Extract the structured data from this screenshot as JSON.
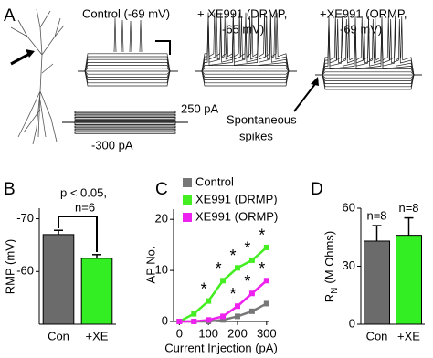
{
  "panel_a": {
    "label": "A",
    "trace_titles": [
      "Control (-69 mV)",
      "+ XE991 (DRMP,",
      "-65 mV)",
      "+XE991 (ORMP,",
      "-69 mV)"
    ],
    "step_max": "250 pA",
    "step_min": "-300 pA",
    "annotation": [
      "Spontaneous",
      "spikes"
    ]
  },
  "chart_data": [
    {
      "type": "bar",
      "panel": "B",
      "ylabel": "RMP (mV)",
      "categories": [
        "Con",
        "+XE"
      ],
      "values": [
        -67,
        -62.5
      ],
      "errors": [
        0.8,
        0.7
      ],
      "colors": [
        "#6b6b6b",
        "#33ee22"
      ],
      "ylim": [
        -50,
        -72
      ],
      "yticks": [
        -70,
        -60
      ],
      "annotation": [
        "p < 0.05,",
        "n=6"
      ]
    },
    {
      "type": "line",
      "panel": "C",
      "xlabel": "Current Injection (pA)",
      "ylabel": "AP No.",
      "x": [
        0,
        50,
        100,
        150,
        200,
        250,
        300
      ],
      "xlim": [
        -20,
        310
      ],
      "xticks": [
        0,
        100,
        200,
        300
      ],
      "ylim": [
        0,
        22
      ],
      "yticks": [
        0,
        10,
        20
      ],
      "significance_marker": "*",
      "legend": "top-left",
      "series": [
        {
          "name": "Control",
          "color": "#777777",
          "values": [
            0,
            0,
            0,
            0.3,
            1,
            2,
            3.5
          ]
        },
        {
          "name": "XE991 (DRMP)",
          "color": "#44ee22",
          "values": [
            0,
            1.5,
            4,
            8,
            10.5,
            12,
            14.5
          ]
        },
        {
          "name": "XE991 (ORMP)",
          "color": "#ee22ee",
          "values": [
            0,
            0,
            0.3,
            1,
            3,
            5.5,
            8
          ]
        }
      ]
    },
    {
      "type": "bar",
      "panel": "D",
      "ylabel": "R",
      "ylabel_sub": "N",
      "ylabel_unit": "(M Ohms)",
      "categories": [
        "Con",
        "+XE"
      ],
      "values": [
        43,
        46
      ],
      "errors": [
        8,
        9
      ],
      "value_labels": [
        "n=8",
        "n=8"
      ],
      "colors": [
        "#6b6b6b",
        "#33ee22"
      ],
      "ylim": [
        0,
        60
      ],
      "yticks": [
        0,
        30,
        60
      ]
    }
  ]
}
